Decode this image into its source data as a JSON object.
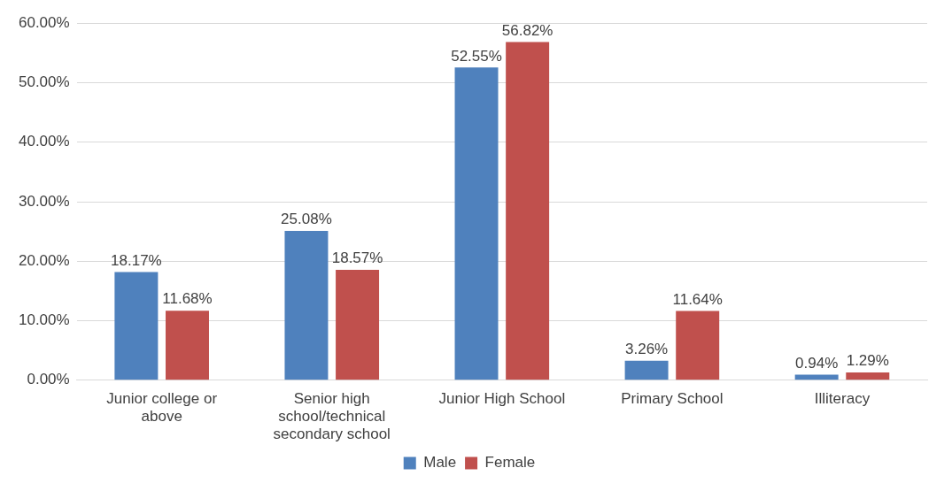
{
  "chart_data": {
    "type": "bar",
    "categories": [
      "Junior college or above",
      "Senior high school/technical secondary school",
      "Junior High School",
      "Primary School",
      "Illiteracy"
    ],
    "series": [
      {
        "name": "Male",
        "color": "#4f81bd",
        "values": [
          18.17,
          25.08,
          52.55,
          3.26,
          0.94
        ],
        "value_labels": [
          "18.17%",
          "25.08%",
          "52.55%",
          "3.26%",
          "0.94%"
        ]
      },
      {
        "name": "Female",
        "color": "#c0504d",
        "values": [
          11.68,
          18.57,
          56.82,
          11.64,
          1.29
        ],
        "value_labels": [
          "11.68%",
          "18.57%",
          "56.82%",
          "11.64%",
          "1.29%"
        ]
      }
    ],
    "ylim": [
      0,
      60
    ],
    "yticks": [
      {
        "value": 0,
        "label": "0.00%"
      },
      {
        "value": 10,
        "label": "10.00%"
      },
      {
        "value": 20,
        "label": "20.00%"
      },
      {
        "value": 30,
        "label": "30.00%"
      },
      {
        "value": 40,
        "label": "40.00%"
      },
      {
        "value": 50,
        "label": "50.00%"
      },
      {
        "value": 60,
        "label": "60.00%"
      }
    ],
    "grid": "y",
    "legend": "bottom"
  }
}
